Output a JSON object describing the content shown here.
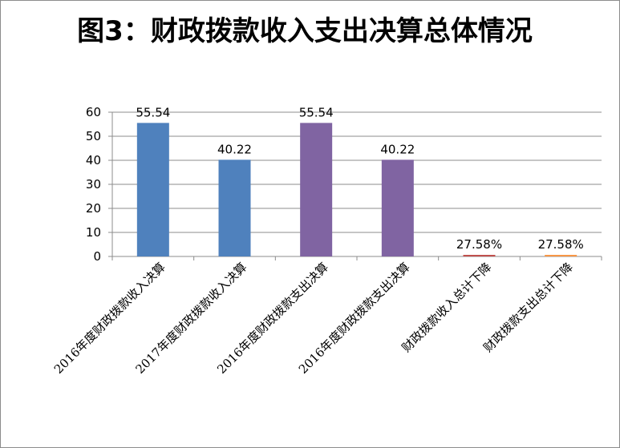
{
  "chart_data": {
    "type": "bar",
    "title": "图3：财政拨款收入支出决算总体情况",
    "categories": [
      "2016年度财政拨款收入决算",
      "2017年度财政拨款收入决算",
      "2016年度财政拨款支出决算",
      "2016年度财政拨款支出决算",
      "财政拨款收入总计下降",
      "财政拨款支出总计下降"
    ],
    "values": [
      55.54,
      40.22,
      55.54,
      40.22,
      0.2758,
      0.2758
    ],
    "data_labels": [
      "55.54",
      "40.22",
      "55.54",
      "40.22",
      "27.58%",
      "27.58%"
    ],
    "colors": [
      "#4f81bd",
      "#4f81bd",
      "#8064a2",
      "#8064a2",
      "#c0504d",
      "#f79646"
    ],
    "ylim": [
      0,
      60
    ],
    "yticks": [
      0,
      10,
      20,
      30,
      40,
      50,
      60
    ],
    "grid": true,
    "legend": "none",
    "xlabel": "",
    "ylabel": ""
  }
}
